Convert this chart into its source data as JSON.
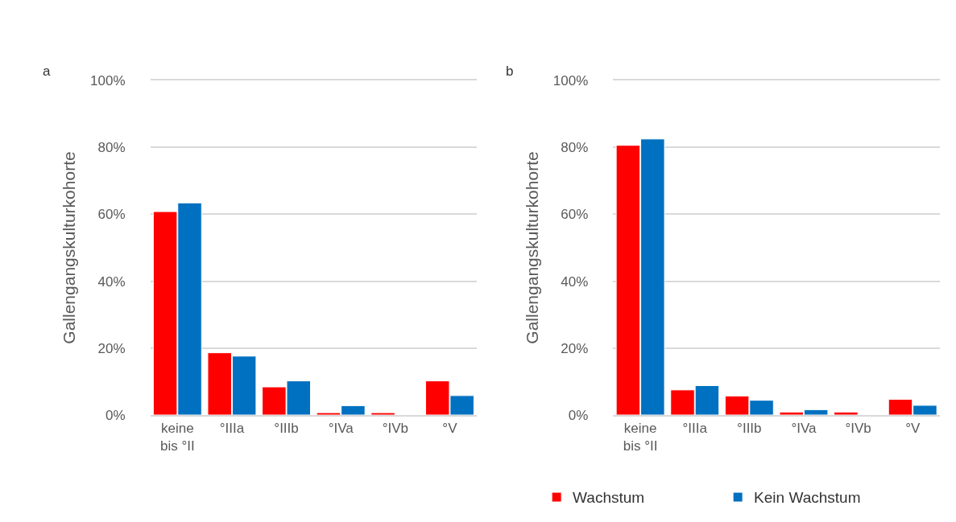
{
  "chart_data": [
    {
      "type": "bar",
      "title": "a",
      "ylabel": "Gallengangskulturkohorte",
      "categories": [
        "keine\nbis °II",
        "°IIIa",
        "°IIIb",
        "°IVa",
        "°IVb",
        "°V"
      ],
      "series": [
        {
          "color": "#ff0000",
          "values": [
            60.8,
            18.6,
            8.4,
            0.7,
            0.7,
            10.2
          ]
        },
        {
          "color": "#0070c0",
          "values": [
            63.4,
            17.6,
            10.2,
            2.8,
            null,
            5.8
          ]
        }
      ],
      "ylim": [
        0,
        100
      ],
      "yticks": [
        {
          "value": 0,
          "label": "0%"
        },
        {
          "value": 20,
          "label": "20%"
        },
        {
          "value": 40,
          "label": "40%"
        },
        {
          "value": 60,
          "label": "60%"
        },
        {
          "value": 80,
          "label": "80%"
        },
        {
          "value": 100,
          "label": "100%"
        }
      ],
      "grid": "y",
      "legend": false
    },
    {
      "type": "bar",
      "title": "b",
      "ylabel": "Gallengangskulturkohorte",
      "categories": [
        "keine\nbis °II",
        "°IIIa",
        "°IIIb",
        "°IVa",
        "°IVb",
        "°V"
      ],
      "series": [
        {
          "name": "Wachstum",
          "color": "#ff0000",
          "values": [
            80.6,
            7.5,
            5.7,
            0.9,
            0.9,
            4.7
          ]
        },
        {
          "name": "Kein Wachstum",
          "color": "#0070c0",
          "values": [
            82.5,
            8.8,
            4.4,
            1.6,
            null,
            2.9
          ]
        }
      ],
      "ylim": [
        0,
        100
      ],
      "yticks": [
        {
          "value": 0,
          "label": "0%"
        },
        {
          "value": 20,
          "label": "20%"
        },
        {
          "value": 40,
          "label": "40%"
        },
        {
          "value": 60,
          "label": "60%"
        },
        {
          "value": 80,
          "label": "80%"
        },
        {
          "value": 100,
          "label": "100%"
        }
      ],
      "grid": "y",
      "legend": "bottom"
    }
  ]
}
